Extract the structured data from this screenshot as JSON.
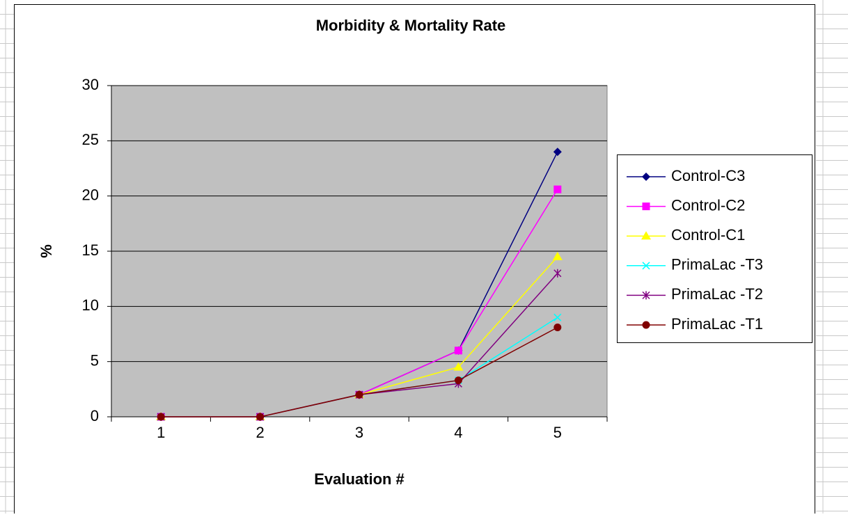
{
  "chart_data": {
    "type": "line",
    "title": "Morbidity & Mortality Rate",
    "x_label": "Evaluation #",
    "y_label": "%",
    "categories": [
      "1",
      "2",
      "3",
      "4",
      "5"
    ],
    "ylim": [
      0,
      30
    ],
    "yticks": [
      0,
      5,
      10,
      15,
      20,
      25,
      30
    ],
    "grid": true,
    "legend": "right",
    "series": [
      {
        "name": "Control-C3",
        "color": "#000080",
        "marker": "diamond",
        "values": [
          0,
          0,
          2,
          6,
          24
        ]
      },
      {
        "name": "Control-C2",
        "color": "#ff00ff",
        "marker": "square",
        "values": [
          0,
          0,
          2,
          6,
          20.6
        ]
      },
      {
        "name": "Control-C1",
        "color": "#ffff00",
        "marker": "triangle",
        "values": [
          0,
          0,
          2,
          4.5,
          14.5
        ]
      },
      {
        "name": "PrimaLac -T3",
        "color": "#00ffff",
        "marker": "x",
        "values": [
          0,
          0,
          2,
          3.3,
          9
        ]
      },
      {
        "name": "PrimaLac -T2",
        "color": "#800080",
        "marker": "star",
        "values": [
          0,
          0,
          2,
          3,
          13
        ]
      },
      {
        "name": "PrimaLac -T1",
        "color": "#800000",
        "marker": "circle",
        "values": [
          0,
          0,
          2,
          3.3,
          8.1
        ]
      }
    ]
  }
}
